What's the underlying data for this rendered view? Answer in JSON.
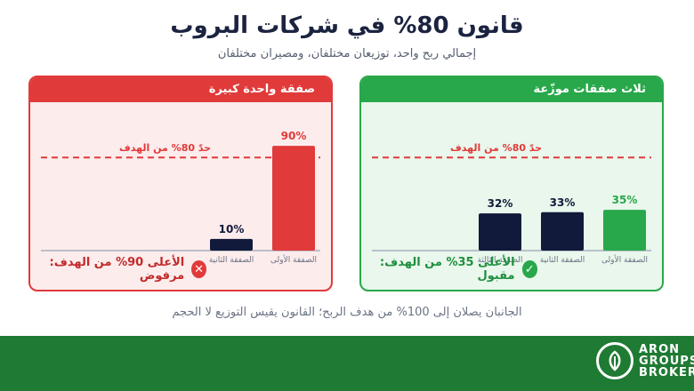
{
  "header": {
    "title": "قانون 80% في شركات البروب",
    "subtitle": "إجمالي ربح واحد، توزيعان مختلفان، ومصيران مختلفان"
  },
  "colors": {
    "red": "#e13a3a",
    "red_bg": "#fdecec",
    "green": "#28a84a",
    "green_bg": "#e9f7ec",
    "navy": "#111a3a",
    "footer_green": "#1f7a33"
  },
  "chart_data": [
    {
      "type": "bar",
      "title": "صفقة واحدة كبيرة",
      "categories": [
        "الصفقة الأولى",
        "الصفقة الثانية"
      ],
      "values": [
        90,
        10
      ],
      "value_labels": [
        "90%",
        "10%"
      ],
      "bar_colors": [
        "#e13a3a",
        "#111a3a"
      ],
      "ylim": [
        0,
        100
      ],
      "threshold": {
        "value": 80,
        "label": "حدّ 80% من الهدف"
      },
      "verdict": "الأعلى 90% من الهدف: مرفوض",
      "verdict_icon": "x-icon"
    },
    {
      "type": "bar",
      "title": "ثلاث صفقات موزّعة",
      "categories": [
        "الصفقة الأولى",
        "الصفقة الثانية",
        "الصفقة الثالثة"
      ],
      "values": [
        35,
        33,
        32
      ],
      "value_labels": [
        "35%",
        "33%",
        "32%"
      ],
      "bar_colors": [
        "#28a84a",
        "#111a3a",
        "#111a3a"
      ],
      "ylim": [
        0,
        100
      ],
      "threshold": {
        "value": 80,
        "label": "حدّ 80% من الهدف"
      },
      "verdict": "الأعلى 35% من الهدف: مقبول",
      "verdict_icon": "check-icon"
    }
  ],
  "footnote": "الجانبان يصلان إلى 100% من هدف الربح؛ القانون يقيس التوزيع لا الحجم",
  "logo": {
    "line1": "ARON",
    "line2": "GROUPS",
    "line3": "BROKER",
    "icon": "leaf-logo-icon"
  }
}
